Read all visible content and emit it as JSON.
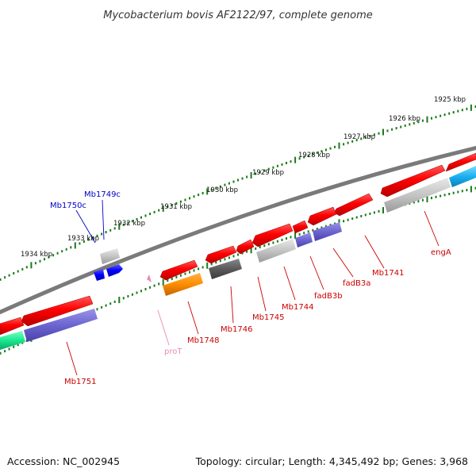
{
  "header": {
    "title": "Mycobacterium bovis AF2122/97, complete genome"
  },
  "footer": {
    "accession": "Accession: NC_002945",
    "summary": "Topology: circular; Length: 4,345,492 bp; Genes: 3,968"
  },
  "map": {
    "backbone_color": "#7a7a7a",
    "tick_color": "#1a7a1a",
    "kbp_labels": [
      "1925 kbp",
      "1926 kbp",
      "1927 kbp",
      "1928 kbp",
      "1929 kbp",
      "1930 kbp",
      "1931 kbp",
      "1932 kbp",
      "1933 kbp",
      "1934 kbp"
    ]
  },
  "genes": [
    {
      "label": "Mb1741",
      "color": "#cc0000"
    },
    {
      "label": "engA",
      "color": "#cc0000"
    },
    {
      "label": "fadB3a",
      "color": "#cc0000"
    },
    {
      "label": "fadB3b",
      "color": "#cc0000"
    },
    {
      "label": "Mb1744",
      "color": "#cc0000"
    },
    {
      "label": "Mb1745",
      "color": "#cc0000"
    },
    {
      "label": "Mb1746",
      "color": "#cc0000"
    },
    {
      "label": "Mb1748",
      "color": "#cc0000"
    },
    {
      "label": "proT",
      "color": "#e88ab8"
    },
    {
      "label": "Mb1751",
      "color": "#cc0000"
    },
    {
      "label": "Mb1749c",
      "color": "#0000cc"
    },
    {
      "label": "Mb1750c",
      "color": "#0000cc"
    }
  ]
}
